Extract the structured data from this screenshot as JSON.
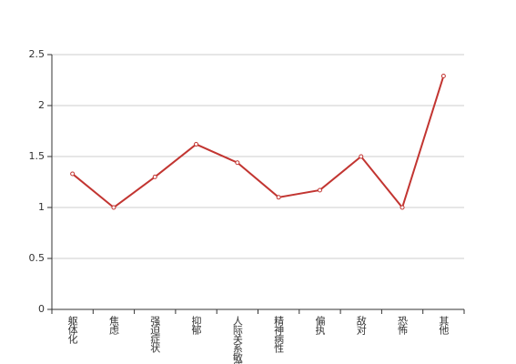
{
  "chart_data": {
    "type": "line",
    "categories": [
      "躯体化",
      "焦虑",
      "强迫症状",
      "抑郁",
      "人际关系敏感",
      "精神病性",
      "偏执",
      "敌对",
      "恐怖",
      "其他"
    ],
    "values": [
      1.33,
      1.0,
      1.3,
      1.62,
      1.44,
      1.1,
      1.17,
      1.5,
      1.0,
      2.29
    ],
    "color": "#c23531",
    "ylim": [
      0,
      2.5
    ],
    "yticks": [
      0,
      0.5,
      1,
      1.5,
      2,
      2.5
    ],
    "grid": true
  }
}
